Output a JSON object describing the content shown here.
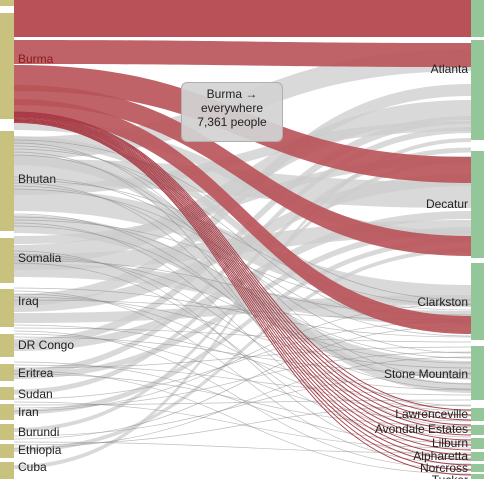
{
  "colors": {
    "source_node": "#c8c27e",
    "target_node": "#93c79a",
    "highlight": "#b85258",
    "highlight_thin": "#a83a44",
    "link_muted": "#cccccc",
    "link_thin": "#888888"
  },
  "tooltip": {
    "line1": "Burma →",
    "line2": "everywhere",
    "line3": "7,361 people"
  },
  "sources": [
    {
      "name": "",
      "highlight": false
    },
    {
      "name": "Burma",
      "highlight": true
    },
    {
      "name": "Bhutan",
      "highlight": false
    },
    {
      "name": "Somalia",
      "highlight": false
    },
    {
      "name": "Iraq",
      "highlight": false
    },
    {
      "name": "DR Congo",
      "highlight": false
    },
    {
      "name": "Eritrea",
      "highlight": false
    },
    {
      "name": "Sudan",
      "highlight": false
    },
    {
      "name": "Iran",
      "highlight": false
    },
    {
      "name": "Burundi",
      "highlight": false
    },
    {
      "name": "Ethiopia",
      "highlight": false
    },
    {
      "name": "Cuba",
      "highlight": false
    }
  ],
  "targets": [
    {
      "name": ""
    },
    {
      "name": "Atlanta"
    },
    {
      "name": "Decatur"
    },
    {
      "name": "Clarkston"
    },
    {
      "name": "Stone Mountain"
    },
    {
      "name": "Lawrenceville"
    },
    {
      "name": "Avondale Estates"
    },
    {
      "name": "Lilburn"
    },
    {
      "name": "Alpharetta"
    },
    {
      "name": "Norcross"
    },
    {
      "name": "Tucker"
    }
  ]
}
